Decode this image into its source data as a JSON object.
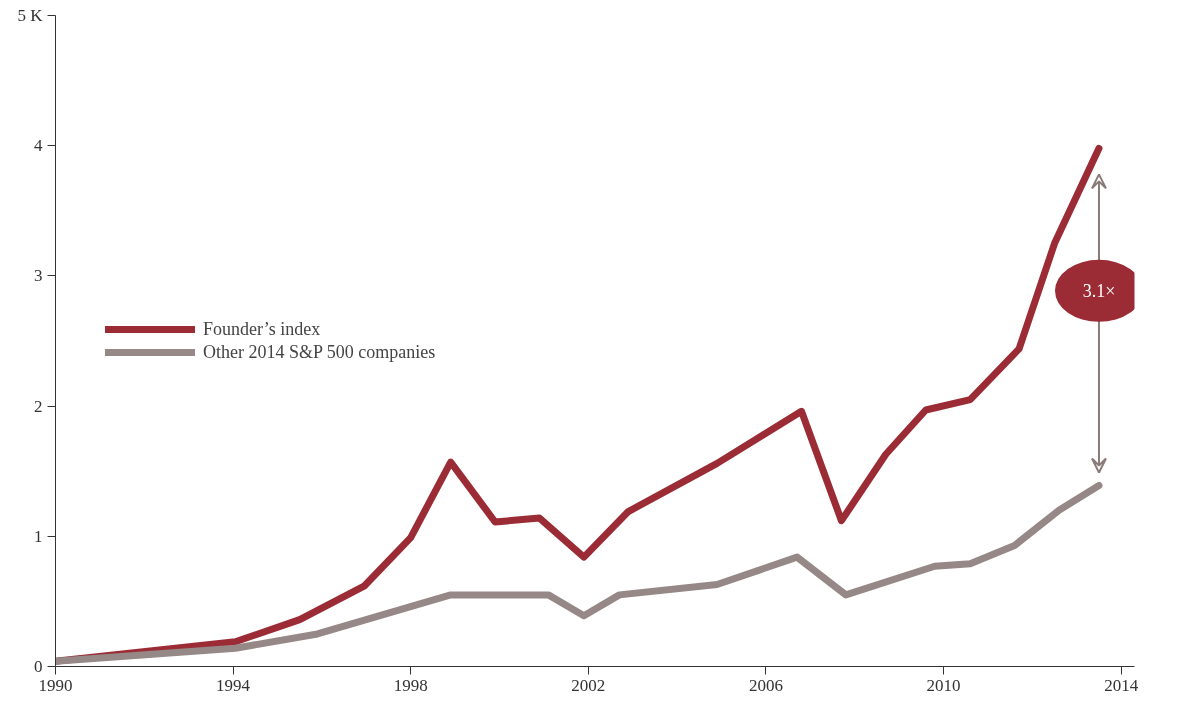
{
  "chart_data": {
    "type": "line",
    "xlim": [
      1990,
      2014.3
    ],
    "ylim": [
      0,
      5
    ],
    "xticks": [
      1990,
      1994,
      1998,
      2002,
      2006,
      2010,
      2014
    ],
    "yticks": [
      0,
      1,
      2,
      3,
      4,
      {
        "value": 5,
        "label": "5 K"
      }
    ],
    "grid": false,
    "legend": "left",
    "marker": "none",
    "line_style": "solid",
    "series": [
      {
        "name": "Founder’s index",
        "color": "#9b2c35",
        "x": [
          1990,
          1994.05,
          1995.5,
          1996.96,
          1998.0,
          1998.9,
          1999.9,
          2000.9,
          2001.9,
          2002.9,
          2004.9,
          2006.8,
          2007.7,
          2008.7,
          2009.6,
          2010.6,
          2011.7,
          2012.5,
          2013.5
        ],
        "values": [
          0.04,
          0.19,
          0.36,
          0.62,
          0.99,
          1.57,
          1.11,
          1.14,
          0.84,
          1.19,
          1.56,
          1.96,
          1.12,
          1.63,
          1.97,
          2.05,
          2.44,
          3.25,
          3.98
        ]
      },
      {
        "name": "Other 2014 S&P 500 companies",
        "color": "#958886",
        "x": [
          1990,
          1994.05,
          1995.9,
          1998.9,
          2001.1,
          2001.9,
          2002.7,
          2004.9,
          2006.7,
          2007.8,
          2009.8,
          2010.6,
          2011.6,
          2012.6,
          2013.5
        ],
        "values": [
          0.04,
          0.14,
          0.25,
          0.55,
          0.55,
          0.39,
          0.55,
          0.63,
          0.84,
          0.55,
          0.77,
          0.79,
          0.93,
          1.2,
          1.39
        ]
      }
    ],
    "annotations": [
      "3.1×"
    ]
  }
}
